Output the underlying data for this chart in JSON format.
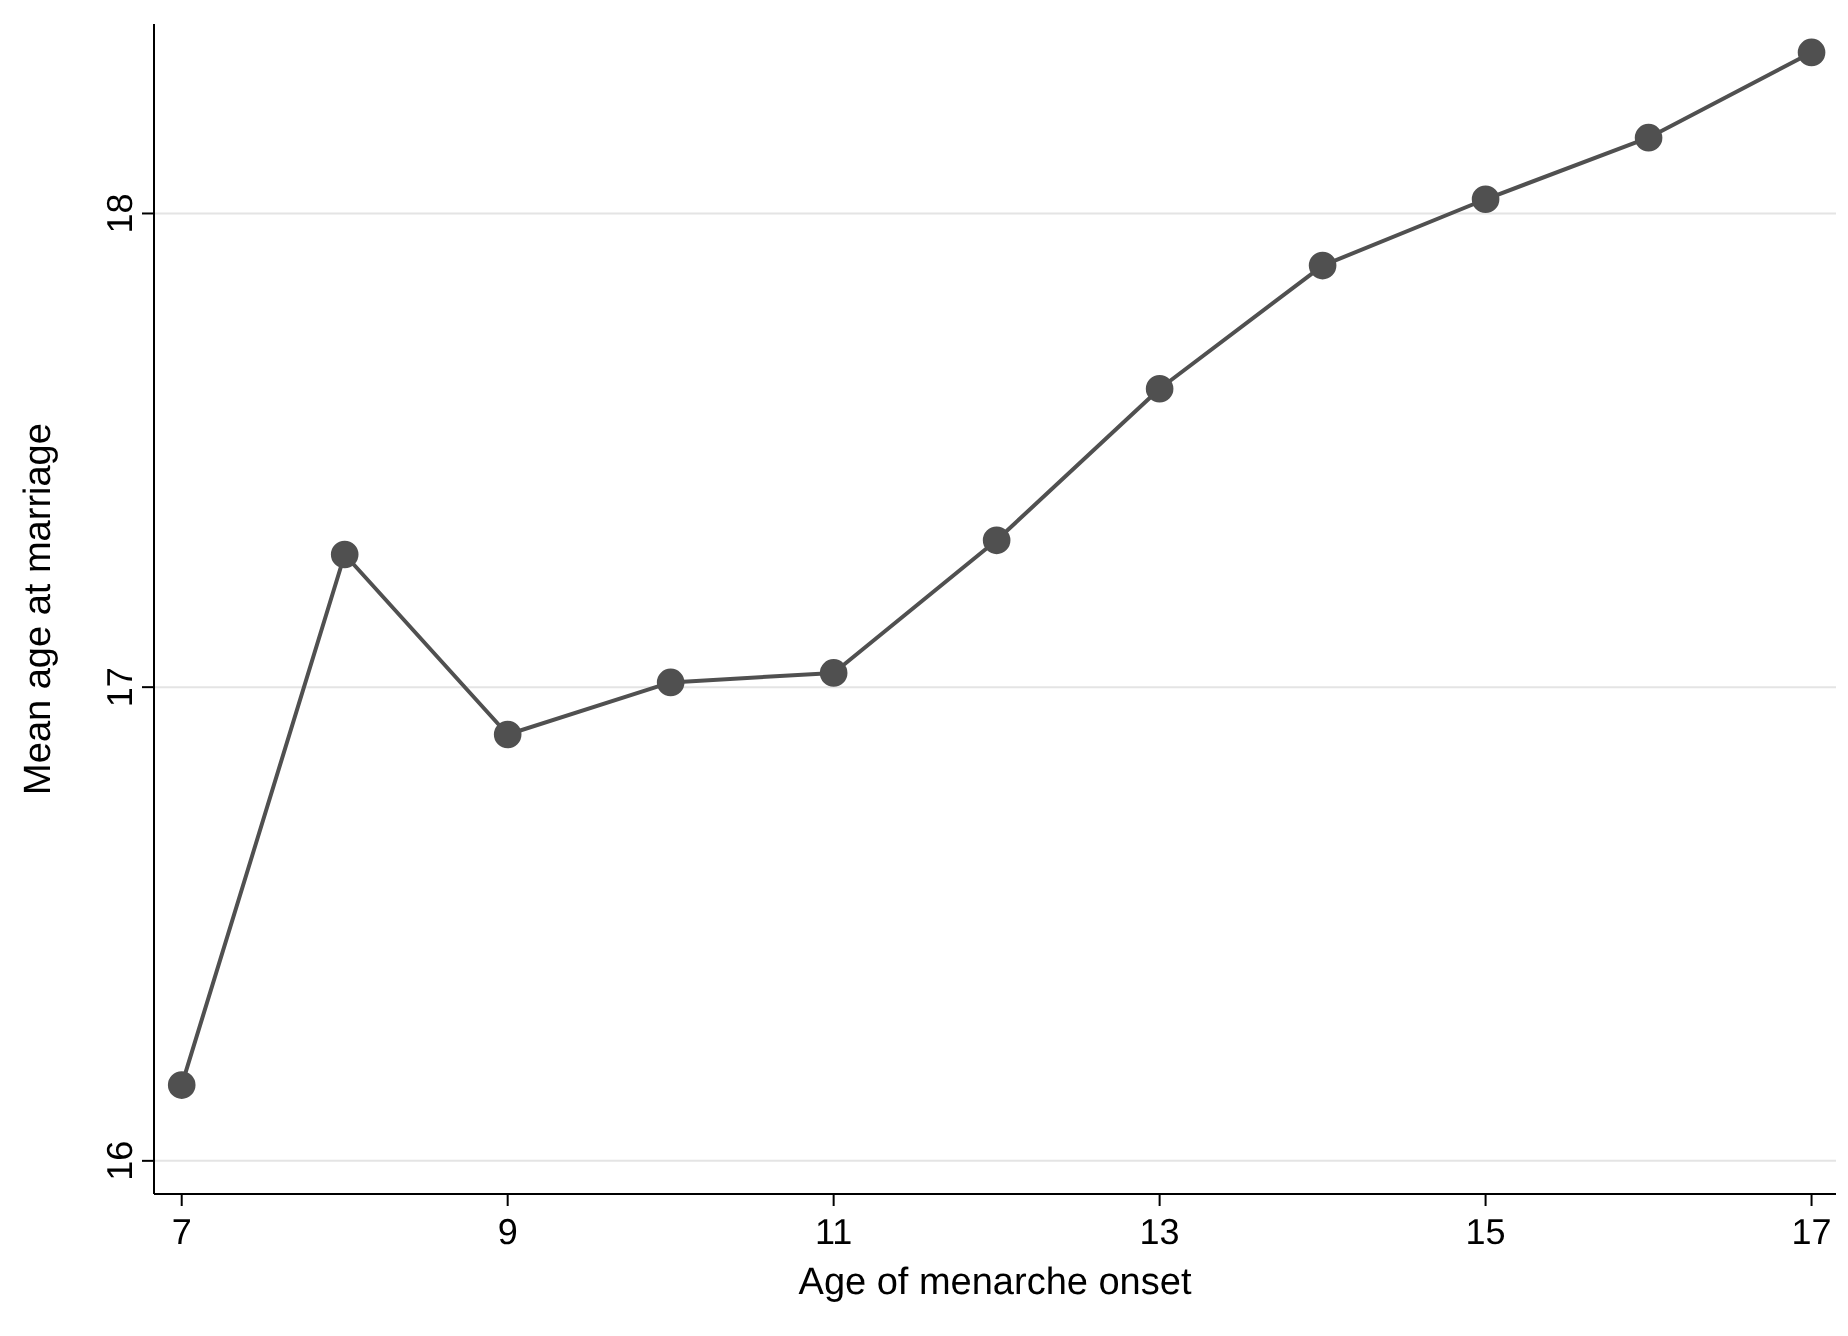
{
  "chart_data": {
    "type": "line",
    "xlabel": "Age of menarche onset",
    "ylabel": "Mean age at marriage",
    "x": [
      7,
      8,
      9,
      10,
      11,
      12,
      13,
      14,
      15,
      16,
      17
    ],
    "series": [
      {
        "color": "#505050",
        "values": [
          16.16,
          17.28,
          16.9,
          17.01,
          17.03,
          17.31,
          17.63,
          17.89,
          18.03,
          18.16,
          18.34
        ]
      }
    ],
    "xlim": [
      6.83,
      17.15
    ],
    "ylim": [
      15.93,
      18.4
    ],
    "xticks": [
      7,
      9,
      11,
      13,
      15,
      17
    ],
    "yticks": [
      16,
      17,
      18
    ],
    "grid": "y",
    "marker": "circle",
    "line_style": "solid"
  }
}
